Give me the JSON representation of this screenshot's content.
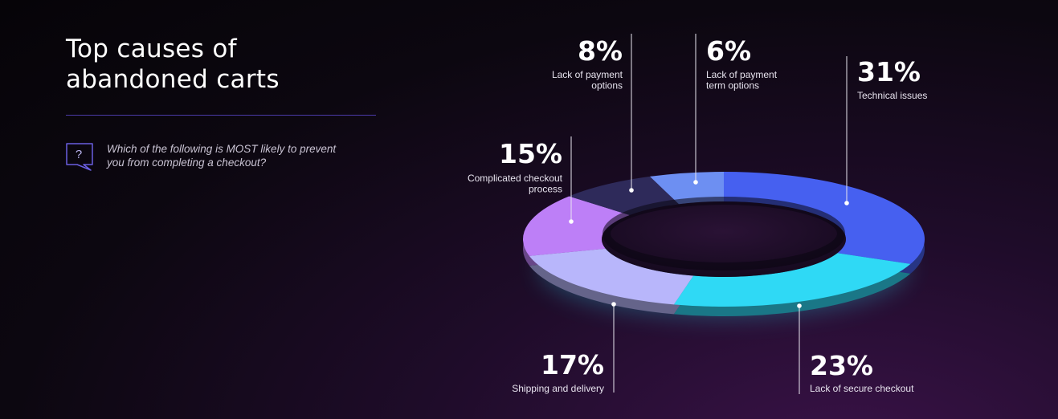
{
  "header": {
    "title_line1": "Top causes of",
    "title_line2": "abandoned carts"
  },
  "question": {
    "icon": "question-bubble-icon",
    "line1": "Which of the following is MOST likely to prevent",
    "line2": "you from completing a checkout?"
  },
  "chart_data": {
    "type": "pie",
    "variant": "donut-3d",
    "slices": [
      {
        "label_lines": [
          "Technical issues"
        ],
        "value": 31,
        "value_text": "31%",
        "color": "#4660f0"
      },
      {
        "label_lines": [
          "Lack of secure checkout"
        ],
        "value": 23,
        "value_text": "23%",
        "color": "#2fd9f5"
      },
      {
        "label_lines": [
          "Shipping and delivery"
        ],
        "value": 17,
        "value_text": "17%",
        "color": "#b8b6fb"
      },
      {
        "label_lines": [
          "Complicated checkout",
          "process"
        ],
        "value": 15,
        "value_text": "15%",
        "color": "#bd7ff7"
      },
      {
        "label_lines": [
          "Lack of payment",
          "options"
        ],
        "value": 8,
        "value_text": "8%",
        "color": "#2e2a5a"
      },
      {
        "label_lines": [
          "Lack of payment",
          "term options"
        ],
        "value": 6,
        "value_text": "6%",
        "color": "#6d8ff2"
      }
    ]
  }
}
